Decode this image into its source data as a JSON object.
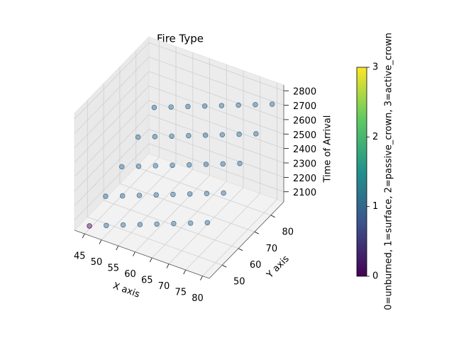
{
  "chart_data": {
    "type": "scatter3d",
    "title": "Fire Type",
    "x_label": "X axis",
    "y_label": "Y axis",
    "z_label": "Time of Arrival",
    "colorbar_label": "0=unburned, 1=surface, 2=passive_crown, 3=active_crown",
    "x": [
      45,
      50,
      55,
      60,
      65,
      70,
      75,
      80,
      45,
      50,
      55,
      60,
      65,
      70,
      75,
      80,
      45,
      50,
      55,
      60,
      65,
      70,
      75,
      80,
      45,
      50,
      55,
      60,
      65,
      70,
      75,
      80,
      45,
      50,
      55,
      60,
      65,
      70,
      75,
      80
    ],
    "y": [
      45,
      45,
      45,
      45,
      45,
      45,
      45,
      45,
      55,
      55,
      55,
      55,
      55,
      55,
      55,
      55,
      65,
      65,
      65,
      65,
      65,
      65,
      65,
      65,
      75,
      75,
      75,
      75,
      75,
      75,
      75,
      75,
      85,
      85,
      85,
      85,
      85,
      85,
      85,
      85
    ],
    "z": [
      2050,
      2095,
      2140,
      2185,
      2230,
      2275,
      2320,
      2365,
      2140,
      2185,
      2230,
      2275,
      2320,
      2365,
      2410,
      2455,
      2230,
      2275,
      2320,
      2365,
      2410,
      2455,
      2500,
      2545,
      2320,
      2365,
      2410,
      2455,
      2500,
      2545,
      2590,
      2635,
      2410,
      2455,
      2500,
      2545,
      2590,
      2635,
      2680,
      2725
    ],
    "c": [
      0,
      1,
      1,
      1,
      1,
      1,
      1,
      1,
      1,
      1,
      1,
      1,
      1,
      1,
      1,
      1,
      1,
      1,
      1,
      1,
      1,
      1,
      1,
      1,
      1,
      1,
      1,
      1,
      1,
      1,
      1,
      1,
      1,
      1,
      1,
      1,
      1,
      1,
      1,
      1
    ],
    "xlim": [
      42,
      82
    ],
    "xticks": [
      45,
      50,
      55,
      60,
      65,
      70,
      75,
      80
    ],
    "ylim": [
      42,
      88
    ],
    "yticks": [
      50,
      60,
      70,
      80
    ],
    "zlim": [
      2030,
      2840
    ],
    "zticks": [
      2100,
      2200,
      2300,
      2400,
      2500,
      2600,
      2700,
      2800
    ],
    "clim": [
      0,
      3
    ],
    "cticks": [
      0,
      1,
      2,
      3
    ],
    "colormap": "viridis",
    "alpha": 0.45,
    "grid": true
  }
}
